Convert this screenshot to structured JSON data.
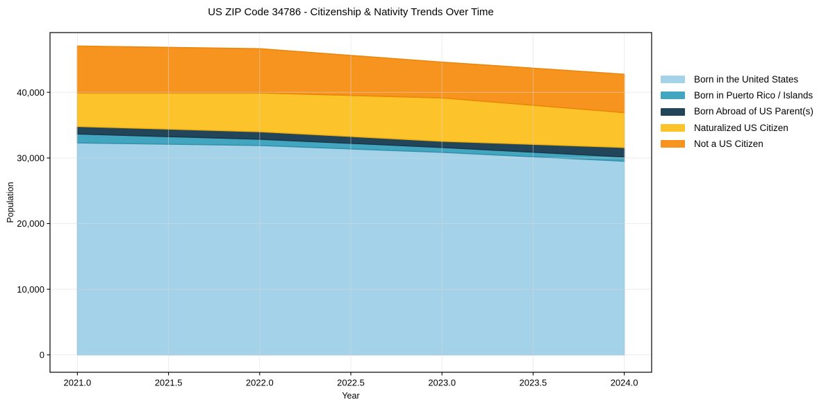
{
  "chart_data": {
    "type": "area",
    "stacked": true,
    "title": "US ZIP Code 34786 - Citizenship & Nativity Trends Over Time",
    "xlabel": "Year",
    "ylabel": "Population",
    "x": [
      2021,
      2022,
      2023,
      2024
    ],
    "series": [
      {
        "name": "Born in the United States",
        "color": "#a4d2e8",
        "edge": "#8cc3dd",
        "values": [
          32300,
          31900,
          30850,
          29500
        ]
      },
      {
        "name": "Born in Puerto Rico / Islands",
        "color": "#43a6c0",
        "edge": "#3590a9",
        "values": [
          1350,
          950,
          750,
          650
        ]
      },
      {
        "name": "Born Abroad of US Parent(s)",
        "color": "#224559",
        "edge": "#1a3848",
        "values": [
          1150,
          1150,
          950,
          1450
        ]
      },
      {
        "name": "Naturalized US Citizen",
        "color": "#fcc32b",
        "edge": "#efb110",
        "values": [
          5100,
          5900,
          6600,
          5300
        ]
      },
      {
        "name": "Not a US Citizen",
        "color": "#f7941f",
        "edge": "#e98508",
        "values": [
          7150,
          6750,
          5450,
          5850
        ]
      }
    ],
    "stack_totals": [
      47050,
      46650,
      44600,
      42750
    ],
    "xticks": [
      "2021.0",
      "2021.5",
      "2022.0",
      "2022.5",
      "2023.0",
      "2023.5",
      "2024.0"
    ],
    "xtick_values": [
      2021,
      2021.5,
      2022,
      2022.5,
      2023,
      2023.5,
      2024
    ],
    "yticks": [
      "0",
      "10,000",
      "20,000",
      "30,000",
      "40,000"
    ],
    "ytick_values": [
      0,
      10000,
      20000,
      30000,
      40000
    ],
    "xlim": [
      2020.85,
      2024.15
    ],
    "ylim": [
      -2650,
      49100
    ],
    "grid": true,
    "legend_position": "right"
  }
}
